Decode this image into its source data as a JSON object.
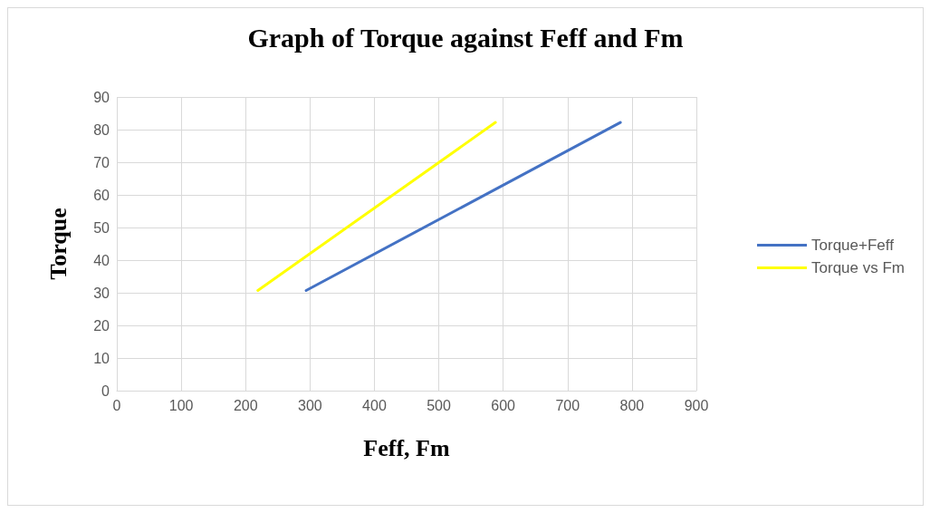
{
  "chart_data": {
    "type": "line",
    "title": "Graph of Torque against Feff and Fm",
    "xlabel": "Feff, Fm",
    "ylabel": "Torque",
    "series": [
      {
        "name": "Torque+Feff",
        "color": "#4472c4",
        "x": [
          294,
          782
        ],
        "values": [
          30.7,
          82.2
        ]
      },
      {
        "name": "Torque vs Fm",
        "color": "#ffff00",
        "x": [
          219,
          588
        ],
        "values": [
          30.7,
          82.2
        ]
      }
    ],
    "xlim": [
      0,
      900
    ],
    "xticks": [
      0,
      100,
      200,
      300,
      400,
      500,
      600,
      700,
      800,
      900
    ],
    "ylim": [
      0,
      90
    ],
    "yticks": [
      0,
      10,
      20,
      30,
      40,
      50,
      60,
      70,
      80,
      90
    ],
    "grid": true,
    "legend": "right",
    "marker": "none",
    "line_style": "solid"
  }
}
